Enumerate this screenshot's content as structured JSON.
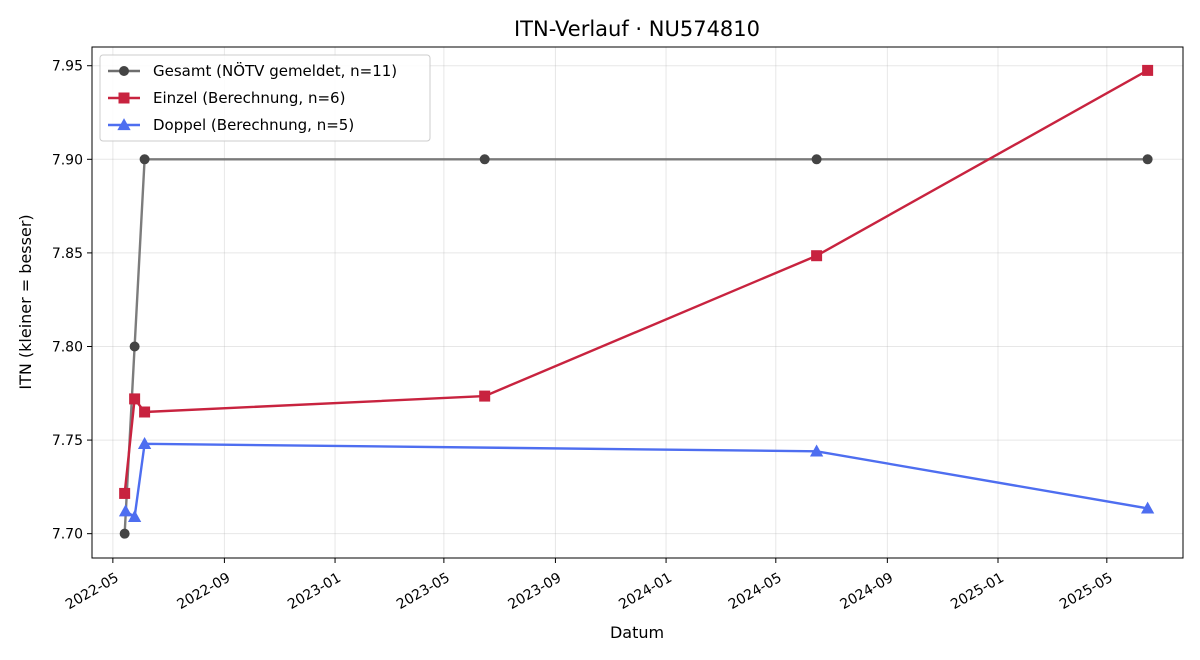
{
  "chart_data": {
    "type": "line",
    "title": "ITN-Verlauf · NU574810",
    "xlabel": "Datum",
    "ylabel": "ITN  (kleiner = besser)",
    "x_type": "date",
    "xlim": [
      "2022-04-08",
      "2025-07-24"
    ],
    "ylim": [
      7.687,
      7.96
    ],
    "x_ticks": [
      "2022-05-01",
      "2022-09-01",
      "2023-01-01",
      "2023-05-01",
      "2023-09-01",
      "2024-01-01",
      "2024-05-01",
      "2024-09-01",
      "2025-01-01",
      "2025-05-01"
    ],
    "x_tick_labels": [
      "2022-05",
      "2022-09",
      "2023-01",
      "2023-05",
      "2023-09",
      "2024-01",
      "2024-05",
      "2024-09",
      "2025-01",
      "2025-05"
    ],
    "y_ticks": [
      7.7,
      7.75,
      7.8,
      7.85,
      7.9,
      7.95
    ],
    "y_tick_labels": [
      "7.70",
      "7.75",
      "7.80",
      "7.85",
      "7.90",
      "7.95"
    ],
    "grid": true,
    "legend_position": "top-left",
    "series": [
      {
        "name": "Gesamt (NÖTV gemeldet, n=11)",
        "color": "#6e6e6e",
        "marker": "circle",
        "points": [
          {
            "x": "2022-05-14",
            "y": 7.7
          },
          {
            "x": "2022-05-25",
            "y": 7.8
          },
          {
            "x": "2022-06-05",
            "y": 7.9
          },
          {
            "x": "2023-06-15",
            "y": 7.9
          },
          {
            "x": "2024-06-15",
            "y": 7.9
          },
          {
            "x": "2025-06-15",
            "y": 7.9
          }
        ]
      },
      {
        "name": "Einzel (Berechnung, n=6)",
        "color": "#c8233f",
        "marker": "square",
        "points": [
          {
            "x": "2022-05-14",
            "y": 7.7215
          },
          {
            "x": "2022-05-25",
            "y": 7.772
          },
          {
            "x": "2022-06-05",
            "y": 7.765
          },
          {
            "x": "2023-06-15",
            "y": 7.7735
          },
          {
            "x": "2024-06-15",
            "y": 7.8485
          },
          {
            "x": "2025-06-15",
            "y": 7.9475
          }
        ]
      },
      {
        "name": "Doppel (Berechnung, n=5)",
        "color": "#4e6ef0",
        "marker": "triangle",
        "points": [
          {
            "x": "2022-05-15",
            "y": 7.712
          },
          {
            "x": "2022-05-25",
            "y": 7.709
          },
          {
            "x": "2022-06-05",
            "y": 7.748
          },
          {
            "x": "2024-06-15",
            "y": 7.744
          },
          {
            "x": "2025-06-15",
            "y": 7.7135
          }
        ]
      }
    ]
  }
}
